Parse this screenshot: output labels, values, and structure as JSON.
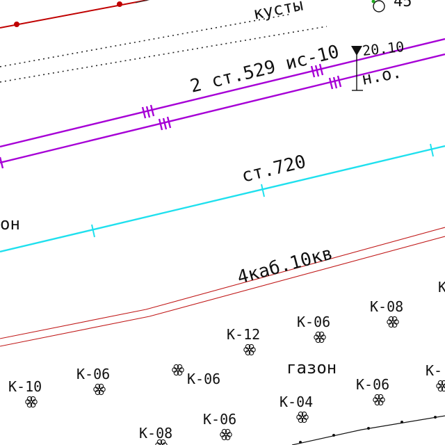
{
  "labels": {
    "bushes": "кусты",
    "point_number": "45",
    "gas_pipe": "2 ст.529 ис-10",
    "elevation_value": "20.10",
    "elevation_note": "н.о.",
    "water_pipe": "ст.720",
    "cable": "4каб.10кв",
    "lawn_left": "он",
    "lawn_right": "газон"
  },
  "shrubs": [
    {
      "id": "s1",
      "label": "К-08"
    },
    {
      "id": "s2",
      "label": "К-06"
    },
    {
      "id": "s3",
      "label": "К-12"
    },
    {
      "id": "s4",
      "label": "К-06"
    },
    {
      "id": "s5",
      "label": "К-06"
    },
    {
      "id": "s6",
      "label": "К-10"
    },
    {
      "id": "s7",
      "label": "К-06"
    },
    {
      "id": "s8",
      "label": "К-04"
    },
    {
      "id": "s9",
      "label": "К-06"
    },
    {
      "id": "s10",
      "label": "К-08"
    },
    {
      "id": "s11",
      "label": "К-"
    },
    {
      "id": "s12",
      "label": "К"
    }
  ],
  "colors": {
    "background": "#ffffff",
    "red_line": "#c00000",
    "gas_pipe": "#a600d6",
    "water_pipe": "#1fe0ee",
    "cable": "#c01818",
    "text": "#111111",
    "green": "#22aa22"
  }
}
